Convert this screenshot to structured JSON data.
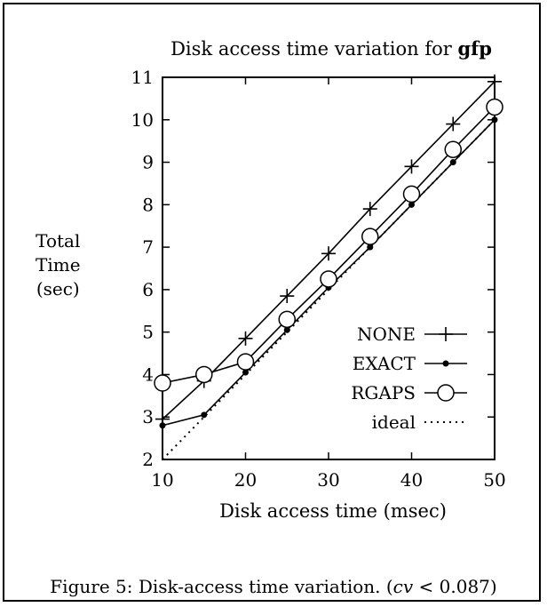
{
  "figure": {
    "caption_prefix": "Figure 5: Disk-access time variation. (",
    "caption_var": "cv",
    "caption_suffix": " < 0.087)"
  },
  "chart_data": {
    "type": "line",
    "title_prefix": "Disk access time variation for ",
    "title_bold": "gfp",
    "xlabel": "Disk access time (msec)",
    "ylabel_lines": [
      "Total",
      "Time",
      "(sec)"
    ],
    "xlim": [
      10,
      50
    ],
    "ylim": [
      2,
      11
    ],
    "xticks": [
      10,
      20,
      30,
      40,
      50
    ],
    "yticks": [
      2,
      3,
      4,
      5,
      6,
      7,
      8,
      9,
      10,
      11
    ],
    "legend_position": "lower-right",
    "series": [
      {
        "name": "NONE",
        "marker": "plus",
        "line": "solid",
        "x": [
          10,
          15,
          20,
          25,
          30,
          35,
          40,
          45,
          50
        ],
        "y": [
          2.95,
          3.85,
          4.85,
          5.85,
          6.85,
          7.9,
          8.9,
          9.9,
          10.9
        ]
      },
      {
        "name": "EXACT",
        "marker": "dot",
        "line": "solid",
        "x": [
          10,
          15,
          20,
          25,
          30,
          35,
          40,
          45,
          50
        ],
        "y": [
          2.8,
          3.05,
          4.05,
          5.05,
          6.05,
          7.0,
          8.0,
          9.0,
          10.0
        ]
      },
      {
        "name": "RGAPS",
        "marker": "circle",
        "line": "solid",
        "x": [
          10,
          15,
          20,
          25,
          30,
          35,
          40,
          45,
          50
        ],
        "y": [
          3.8,
          4.0,
          4.3,
          5.3,
          6.25,
          7.25,
          8.25,
          9.3,
          10.3
        ]
      },
      {
        "name": "ideal",
        "marker": "none",
        "line": "dotted",
        "x": [
          10,
          15,
          20,
          25,
          30,
          35,
          40,
          45,
          50
        ],
        "y": [
          2.0,
          3.0,
          4.0,
          5.0,
          6.0,
          7.0,
          8.0,
          9.0,
          10.0
        ]
      }
    ]
  }
}
